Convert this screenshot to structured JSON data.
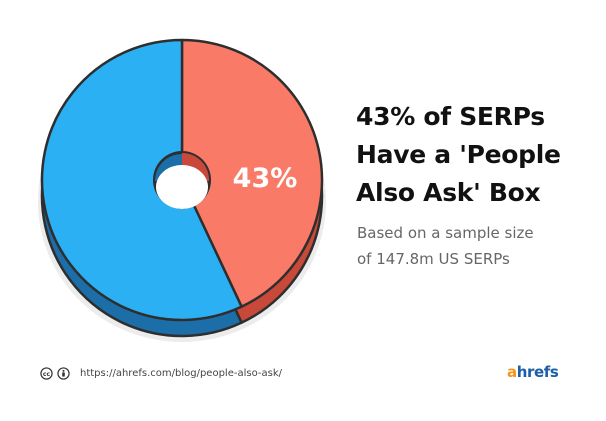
{
  "chart_data": {
    "type": "pie",
    "style": "3d-donut",
    "slices": [
      {
        "label": "43%",
        "value": 43,
        "color": "#fa7a68",
        "side_color": "#c8493a"
      },
      {
        "label": "",
        "value": 57,
        "color": "#2bb0f4",
        "side_color": "#1b6ea8"
      }
    ],
    "title_lines": [
      "43% of SERPs",
      "Have a 'People",
      "Also Ask' Box"
    ],
    "subtitle_lines": [
      "Based on a sample size",
      "of 147.8m US SERPs"
    ]
  },
  "footer": {
    "license_icons": [
      "cc-icon",
      "attribution-icon"
    ],
    "url": "https://ahrefs.com/blog/people-also-ask/"
  },
  "logo": {
    "first_letter": "a",
    "rest": "hrefs",
    "first_color": "#f7941d",
    "rest_color": "#1b5fa8"
  }
}
